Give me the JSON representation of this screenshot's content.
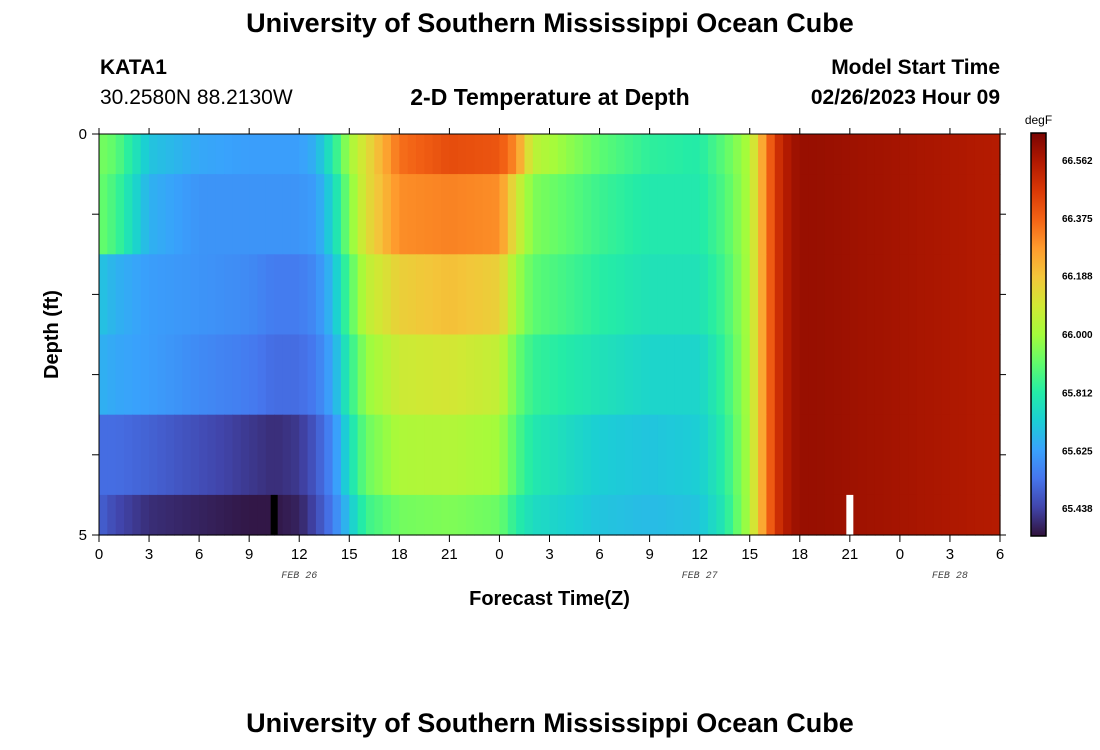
{
  "header": {
    "title": "University of Southern Mississippi Ocean Cube",
    "station": "KATA1",
    "coords": "30.2580N  88.2130W",
    "subtitle": "2-D Temperature at Depth",
    "model_start_label": "Model Start Time",
    "model_start_value": "02/26/2023 Hour 09"
  },
  "footer": {
    "title": "University of Southern Mississippi Ocean Cube"
  },
  "chart_data": {
    "type": "heatmap",
    "xlabel": "Forecast Time(Z)",
    "ylabel": "Depth (ft)",
    "x_range_hours": [
      0,
      54
    ],
    "y_range": [
      0,
      5
    ],
    "x_ticks": [
      "0",
      "3",
      "6",
      "9",
      "12",
      "15",
      "18",
      "21",
      "0",
      "3",
      "6",
      "9",
      "12",
      "15",
      "18",
      "21",
      "0",
      "3",
      "6"
    ],
    "date_labels": [
      {
        "text": "FEB 26",
        "at_hour": 12
      },
      {
        "text": "FEB 27",
        "at_hour": 36
      },
      {
        "text": "FEB 28",
        "at_hour": 51
      }
    ],
    "y_tick_labels": [
      {
        "text": "0",
        "value": 0
      },
      {
        "text": "5",
        "value": 5
      }
    ],
    "colorbar": {
      "units": "degF",
      "ticks": [
        "66.562",
        "66.375",
        "66.188",
        "66.000",
        "65.812",
        "65.625",
        "65.438"
      ],
      "min": 65.35,
      "max": 66.65,
      "colors": [
        "#30123b",
        "#4145ab",
        "#4675ed",
        "#39a2fc",
        "#1bcfd4",
        "#24eca6",
        "#61fc6c",
        "#a4fc3b",
        "#d1e834",
        "#f3c63a",
        "#fe9b2d",
        "#f36315",
        "#d93806",
        "#b11901",
        "#7a0402"
      ]
    },
    "depth_layers": [
      0,
      0.5,
      1.5,
      2.5,
      3.5,
      4.5,
      5.0
    ],
    "time_knots_hours": [
      0,
      1,
      3,
      6,
      9,
      10.5,
      12,
      13,
      14,
      15,
      16,
      18,
      21,
      24,
      25,
      26,
      30,
      33,
      36,
      37.5,
      39,
      39.5,
      40,
      40.5,
      41,
      41.5,
      42,
      43,
      45,
      54
    ],
    "values": [
      [
        65.94,
        65.9,
        65.7,
        65.64,
        65.62,
        65.62,
        65.62,
        65.66,
        65.8,
        66.0,
        66.12,
        66.35,
        66.42,
        66.4,
        66.3,
        66.05,
        65.9,
        65.83,
        65.81,
        65.9,
        66.02,
        66.18,
        66.32,
        66.46,
        66.53,
        66.58,
        66.6,
        66.6,
        66.59,
        66.55
      ],
      [
        65.92,
        65.86,
        65.66,
        65.6,
        65.6,
        65.6,
        65.6,
        65.62,
        65.74,
        65.95,
        66.12,
        66.3,
        66.32,
        66.3,
        66.1,
        65.95,
        65.85,
        65.8,
        65.8,
        65.88,
        66.02,
        66.18,
        66.32,
        66.46,
        66.53,
        66.58,
        66.6,
        66.6,
        66.59,
        66.55
      ],
      [
        65.7,
        65.66,
        65.62,
        65.6,
        65.58,
        65.55,
        65.55,
        65.58,
        65.68,
        65.88,
        66.05,
        66.16,
        66.2,
        66.16,
        66.0,
        65.9,
        65.82,
        65.78,
        65.78,
        65.86,
        66.02,
        66.18,
        66.32,
        66.46,
        66.53,
        66.58,
        66.6,
        66.6,
        66.59,
        66.55
      ],
      [
        65.66,
        65.64,
        65.62,
        65.58,
        65.55,
        65.52,
        65.52,
        65.55,
        65.64,
        65.82,
        65.98,
        66.08,
        66.1,
        66.06,
        65.92,
        65.84,
        65.78,
        65.74,
        65.74,
        65.84,
        66.02,
        66.18,
        66.32,
        66.46,
        66.53,
        66.58,
        66.6,
        66.6,
        66.59,
        66.55
      ],
      [
        65.52,
        65.52,
        65.5,
        65.46,
        65.42,
        65.4,
        65.42,
        65.48,
        65.58,
        65.76,
        65.92,
        66.02,
        66.03,
        66.0,
        65.88,
        65.8,
        65.72,
        65.7,
        65.72,
        65.82,
        66.02,
        66.18,
        66.32,
        66.46,
        66.53,
        66.58,
        66.6,
        66.6,
        66.59,
        66.55
      ],
      [
        65.5,
        65.45,
        65.4,
        65.38,
        65.36,
        65.36,
        65.38,
        65.45,
        65.55,
        65.7,
        65.85,
        65.93,
        65.95,
        65.92,
        65.82,
        65.76,
        65.7,
        65.68,
        65.7,
        65.8,
        66.02,
        66.18,
        66.32,
        66.46,
        66.53,
        66.58,
        66.6,
        66.6,
        66.59,
        66.55
      ]
    ],
    "markers": [
      {
        "hour": 10.5,
        "depth_from": 4.5,
        "depth_to": 5.0,
        "color": "#000000"
      },
      {
        "hour": 45.0,
        "depth_from": 4.5,
        "depth_to": 5.0,
        "color": "#ffffff"
      }
    ]
  }
}
